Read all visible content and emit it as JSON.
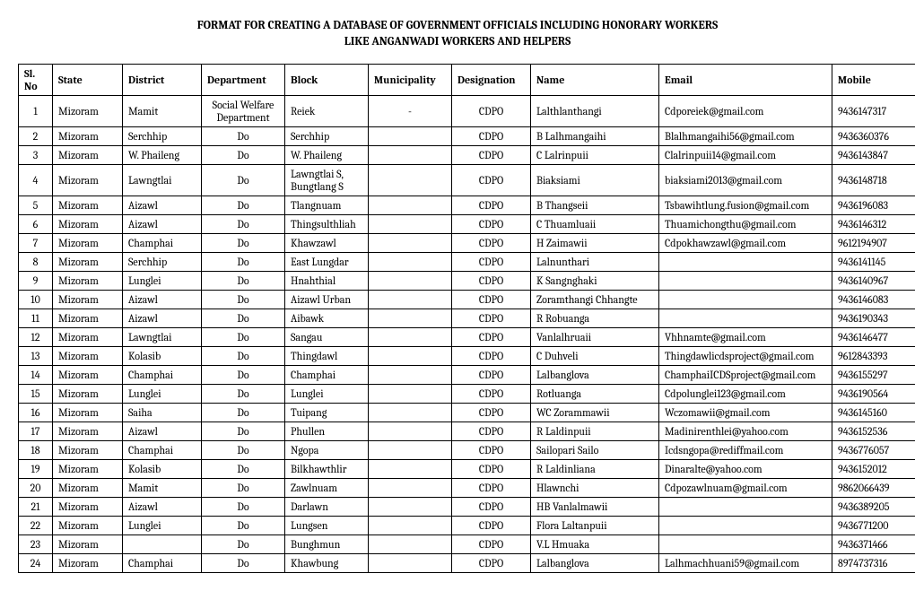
{
  "title_line1": "FORMAT FOR CREATING A DATABASE OF GOVERNMENT OFFICIALS INCLUDING HONORARY WORKERS",
  "title_line2": "LIKE ANGANWADI WORKERS AND HELPERS",
  "headers": [
    "Sl. No",
    "State",
    "District",
    "Department",
    "Block",
    "Municipality",
    "Designation",
    "Name",
    "Email",
    "Mobile"
  ],
  "rows": [
    [
      "1",
      "Mizoram",
      "Mamit",
      "Social Welfare Department",
      "Reiek",
      "-",
      "CDPO",
      "Lalthlanthangi",
      "Cdporeiek@gmail.com",
      "9436147317"
    ],
    [
      "2",
      "Mizoram",
      "Serchhip",
      "Do",
      "Serchhip",
      "",
      "CDPO",
      "B Lalhmangaihi",
      "Blalhmangaihi56@gmail.com",
      "9436360376"
    ],
    [
      "3",
      "Mizoram",
      "W. Phaileng",
      "Do",
      "W. Phaileng",
      "",
      "CDPO",
      "C Lalrinpuii",
      "Clalrinpuii14@gmail.com",
      "9436143847"
    ],
    [
      "4",
      "Mizoram",
      "Lawngtlai",
      "Do",
      "Lawngtlai S, Bungtlang S",
      "",
      "CDPO",
      "Biaksiami",
      "biaksiami2013@gmail.com",
      "9436148718"
    ],
    [
      "5",
      "Mizoram",
      "Aizawl",
      "Do",
      "Tlangnuam",
      "",
      "CDPO",
      "B Thangseii",
      "Tsbawihtlung.fusion@gmail.com",
      "9436196083"
    ],
    [
      "6",
      "Mizoram",
      "Aizawl",
      "Do",
      "Thingsulthliah",
      "",
      "CDPO",
      "C Thuamluaii",
      "Thuamichongthu@gmail.com",
      "9436146312"
    ],
    [
      "7",
      "Mizoram",
      "Champhai",
      "Do",
      "Khawzawl",
      "",
      "CDPO",
      "H Zaimawii",
      "Cdpokhawzawl@gmail.com",
      "9612194907"
    ],
    [
      "8",
      "Mizoram",
      "Serchhip",
      "Do",
      "East Lungdar",
      "",
      "CDPO",
      "Lalnunthari",
      "",
      "9436141145"
    ],
    [
      "9",
      "Mizoram",
      "Lunglei",
      "Do",
      "Hnahthial",
      "",
      "CDPO",
      "K Sangnghaki",
      "",
      "9436140967"
    ],
    [
      "10",
      "Mizoram",
      "Aizawl",
      "Do",
      "Aizawl Urban",
      "",
      "CDPO",
      "Zoramthangi Chhangte",
      "",
      "9436146083"
    ],
    [
      "11",
      "Mizoram",
      "Aizawl",
      "Do",
      "Aibawk",
      "",
      "CDPO",
      "R Robuanga",
      "",
      "9436190343"
    ],
    [
      "12",
      "Mizoram",
      "Lawngtlai",
      "Do",
      "Sangau",
      "",
      "CDPO",
      "Vanlalhruaii",
      "Vhhnamte@gmail.com",
      "9436146477"
    ],
    [
      "13",
      "Mizoram",
      "Kolasib",
      "Do",
      "Thingdawl",
      "",
      "CDPO",
      "C Duhveli",
      "Thingdawlicdsproject@gmail.com",
      "9612843393"
    ],
    [
      "14",
      "Mizoram",
      "Champhai",
      "Do",
      "Champhai",
      "",
      "CDPO",
      "Lalbanglova",
      "ChamphaiICDSproject@gmail.com",
      "9436155297"
    ],
    [
      "15",
      "Mizoram",
      "Lunglei",
      "Do",
      "Lunglei",
      "",
      "CDPO",
      "Rotluanga",
      "Cdpolunglei123@gmail.com",
      "9436190564"
    ],
    [
      "16",
      "Mizoram",
      "Saiha",
      "Do",
      "Tuipang",
      "",
      "CDPO",
      "WC Zorammawii",
      "Wczomawii@gmail.com",
      "9436145160"
    ],
    [
      "17",
      "Mizoram",
      "Aizawl",
      "Do",
      "Phullen",
      "",
      "CDPO",
      "R Laldinpuii",
      "Madinirenthlei@yahoo.com",
      "9436152536"
    ],
    [
      "18",
      "Mizoram",
      "Champhai",
      "Do",
      "Ngopa",
      "",
      "CDPO",
      "Sailopari Sailo",
      "Icdsngopa@rediffmail.com",
      "9436776057"
    ],
    [
      "19",
      "Mizoram",
      "Kolasib",
      "Do",
      "Bilkhawthlir",
      "",
      "CDPO",
      "R Laldinliana",
      "Dinaralte@yahoo.com",
      "9436152012"
    ],
    [
      "20",
      "Mizoram",
      "Mamit",
      "Do",
      "Zawlnuam",
      "",
      "CDPO",
      "Hlawnchi",
      "Cdpozawlnuam@gmail.com",
      "9862066439"
    ],
    [
      "21",
      "Mizoram",
      "Aizawl",
      "Do",
      "Darlawn",
      "",
      "CDPO",
      "HB Vanlalmawii",
      "",
      "9436389205"
    ],
    [
      "22",
      "Mizoram",
      "Lunglei",
      "Do",
      "Lungsen",
      "",
      "CDPO",
      "Flora Laltanpuii",
      "",
      "9436771200"
    ],
    [
      "23",
      "Mizoram",
      "",
      "Do",
      "Bunghmun",
      "",
      "CDPO",
      "V.L Hmuaka",
      "",
      "9436371466"
    ],
    [
      "24",
      "Mizoram",
      "Champhai",
      "Do",
      "Khawbung",
      "",
      "CDPO",
      "Lalbanglova",
      "Lalhmachhuani59@gmail.com",
      "8974737316"
    ]
  ]
}
